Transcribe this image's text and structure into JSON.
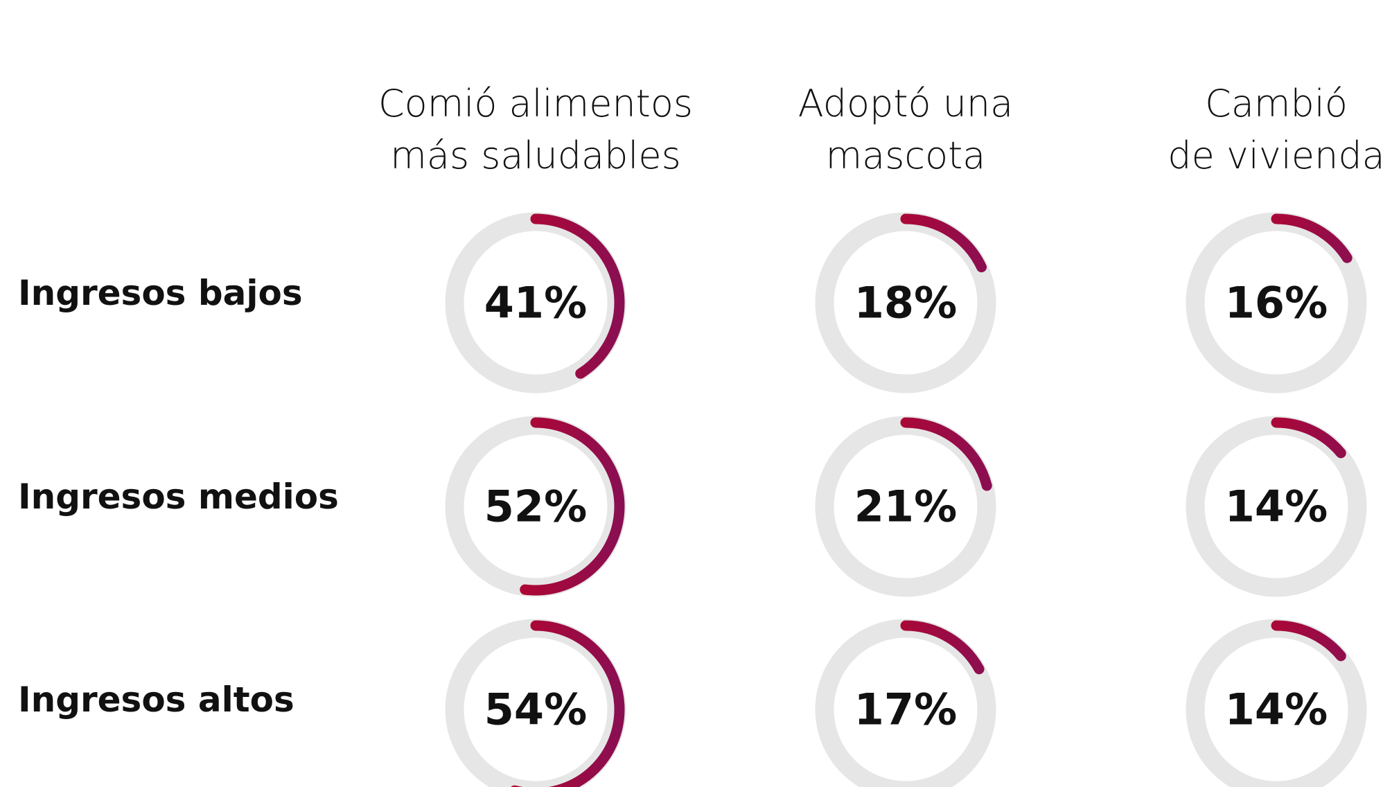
{
  "chart_data": {
    "type": "donut",
    "categories": [
      "Comió alimentos\nmás saludables",
      "Adoptó una\nmascota",
      "Cambió\nde vivienda"
    ],
    "series": [
      {
        "name": "Ingresos bajos",
        "values": [
          41,
          18,
          16
        ],
        "value_labels": [
          "41%",
          "18%",
          "16%"
        ]
      },
      {
        "name": "Ingresos medios",
        "values": [
          52,
          21,
          14
        ],
        "value_labels": [
          "52%",
          "21%",
          "14%"
        ]
      },
      {
        "name": "Ingresos altos",
        "values": [
          54,
          17,
          14
        ],
        "value_labels": [
          "54%",
          "17%",
          "14%"
        ]
      }
    ],
    "ylim": [
      0,
      100
    ],
    "colors": [
      "#c8001e",
      "#8a0f52"
    ],
    "track_color": "#e6e6e6"
  }
}
